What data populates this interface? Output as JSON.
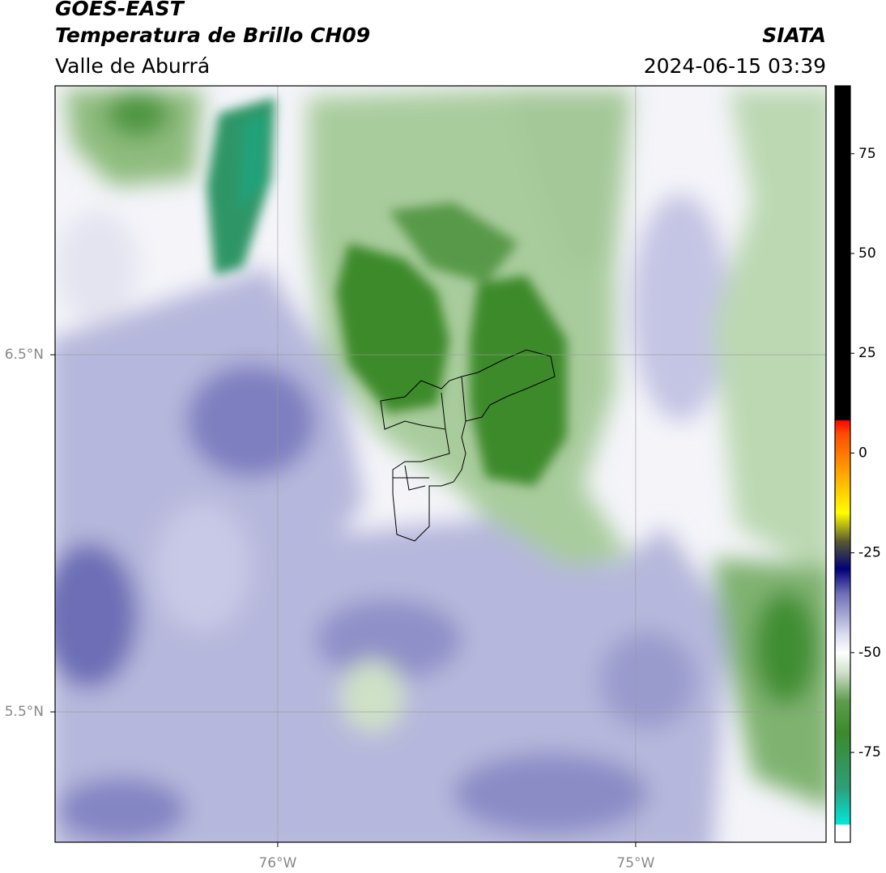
{
  "header": {
    "title": "GOES-EAST",
    "subtitle": "Temperatura de Brillo CH09",
    "region": "Valle de Aburrá",
    "source": "SIATA",
    "datetime": "2024-06-15 03:39"
  },
  "map": {
    "xlim": [
      -76.622,
      -74.468
    ],
    "ylim": [
      5.135,
      7.253
    ],
    "xticks": [
      {
        "value": -76,
        "label": "76°W"
      },
      {
        "value": -75,
        "label": "75°W"
      }
    ],
    "yticks": [
      {
        "value": 6.5,
        "label": "6.5°N"
      },
      {
        "value": 5.5,
        "label": "5.5°N"
      }
    ],
    "grid": true
  },
  "colorbar": {
    "lim": [
      -97.5,
      92
    ],
    "ticks": [
      75,
      50,
      25,
      0,
      -25,
      -50,
      -75
    ],
    "stops": [
      {
        "value": -97.5,
        "color": "#ffffff"
      },
      {
        "value": -93,
        "color": "#ffffff"
      },
      {
        "value": -93,
        "color": "#00e8dc"
      },
      {
        "value": -84,
        "color": "#2e9e7a"
      },
      {
        "value": -70,
        "color": "#3b8a2a"
      },
      {
        "value": -62,
        "color": "#5f9c4e"
      },
      {
        "value": -55,
        "color": "#cfe0c8"
      },
      {
        "value": -50,
        "color": "#ffffff"
      },
      {
        "value": -45,
        "color": "#d6d7ec"
      },
      {
        "value": -35,
        "color": "#6c6cb6"
      },
      {
        "value": -29,
        "color": "#00007a"
      },
      {
        "value": -22,
        "color": "#5a5a30"
      },
      {
        "value": -15,
        "color": "#ffff00"
      },
      {
        "value": -5,
        "color": "#ffa500"
      },
      {
        "value": 5,
        "color": "#ff4a00"
      },
      {
        "value": 8.3,
        "color": "#ff0000"
      },
      {
        "value": 8.3,
        "color": "#000000"
      },
      {
        "value": 92,
        "color": "#000000"
      }
    ]
  }
}
